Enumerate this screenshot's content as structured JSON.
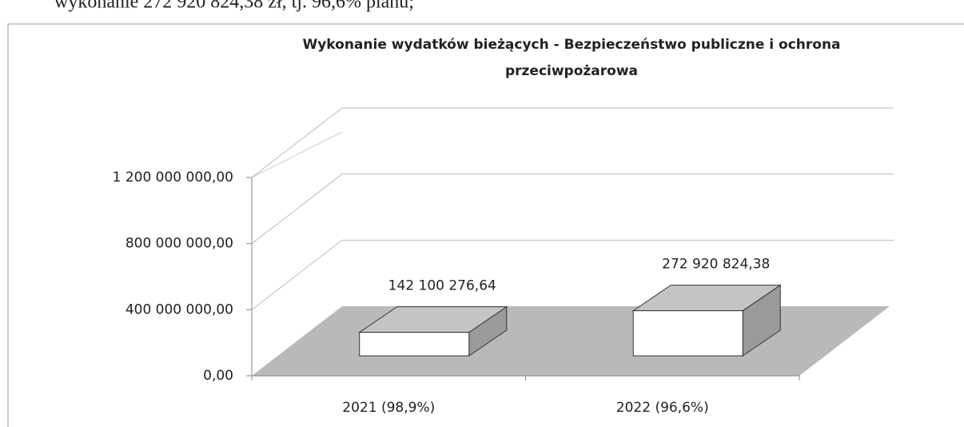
{
  "caption_fragment": "wykonanie 272 920 824,38 zł, tj. 96,6% planu;",
  "chart_data": {
    "type": "bar3d",
    "title": [
      "Wykonanie wydatków bieżących - Bezpieczeństwo publiczne i ochrona",
      "przeciwpożarowa"
    ],
    "categories": [
      "2021 (98,9%)",
      "2022 (96,6%)"
    ],
    "values": [
      142100276.64,
      272920824.38
    ],
    "value_labels": [
      "142 100 276,64",
      "272 920 824,38"
    ],
    "ylim": [
      0,
      1200000000
    ],
    "yticks": [
      {
        "value": 0,
        "label": "0,00"
      },
      {
        "value": 400000000,
        "label": "400 000 000,00"
      },
      {
        "value": 800000000,
        "label": "800 000 000,00"
      },
      {
        "value": 1200000000,
        "label": "1 200 000 000,00"
      }
    ],
    "grid": true,
    "colors": {
      "front": "#ffffff",
      "top": "#c4c4c4",
      "side": "#9a9a9a",
      "floor": "#b9b9b9"
    }
  }
}
